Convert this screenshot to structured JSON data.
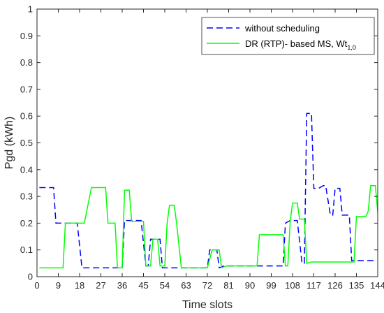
{
  "chart_data": {
    "type": "line",
    "title": "",
    "xlabel": "Time slots",
    "ylabel": "Pgd (kWh)",
    "xlim": [
      0,
      144
    ],
    "ylim": [
      0,
      1
    ],
    "xticks": [
      0,
      9,
      18,
      27,
      36,
      45,
      54,
      63,
      72,
      81,
      90,
      99,
      108,
      117,
      126,
      135,
      144
    ],
    "xtick_labels": [
      "0",
      "9",
      "18",
      "27",
      "36",
      "45",
      "54",
      "63",
      "72",
      "81",
      "90",
      "99",
      "108",
      "117",
      "126",
      "135",
      "144"
    ],
    "yticks": [
      0,
      0.1,
      0.2,
      0.3,
      0.4,
      0.5,
      0.6,
      0.7,
      0.8,
      0.9,
      1
    ],
    "ytick_labels": [
      "0",
      "0.1",
      "0.2",
      "0.3",
      "0.4",
      "0.5",
      "0.6",
      "0.7",
      "0.8",
      "0.9",
      "1"
    ],
    "grid": false,
    "legend_position": "top-right",
    "series": [
      {
        "name": "without scheduling",
        "color": "#0000FF",
        "dash": "dashed",
        "points": [
          [
            1,
            0.333
          ],
          [
            7,
            0.333
          ],
          [
            8,
            0.2
          ],
          [
            14,
            0.2
          ],
          [
            17,
            0.2
          ],
          [
            19,
            0.033
          ],
          [
            36,
            0.033
          ],
          [
            37,
            0.21
          ],
          [
            44,
            0.21
          ],
          [
            46,
            0.04
          ],
          [
            47,
            0.04
          ],
          [
            48,
            0.14
          ],
          [
            52,
            0.14
          ],
          [
            53,
            0.033
          ],
          [
            72,
            0.033
          ],
          [
            73,
            0.1
          ],
          [
            76,
            0.1
          ],
          [
            77,
            0.033
          ],
          [
            79,
            0.04
          ],
          [
            95,
            0.04
          ],
          [
            104,
            0.04
          ],
          [
            105,
            0.2
          ],
          [
            107,
            0.21
          ],
          [
            110,
            0.21
          ],
          [
            112,
            0.05
          ],
          [
            113,
            0.05
          ],
          [
            114,
            0.61
          ],
          [
            116,
            0.61
          ],
          [
            117,
            0.33
          ],
          [
            119,
            0.33
          ],
          [
            121,
            0.34
          ],
          [
            122,
            0.34
          ],
          [
            124,
            0.23
          ],
          [
            125,
            0.23
          ],
          [
            126,
            0.33
          ],
          [
            128,
            0.33
          ],
          [
            129,
            0.23
          ],
          [
            131,
            0.23
          ],
          [
            132,
            0.23
          ],
          [
            133,
            0.06
          ],
          [
            143,
            0.06
          ]
        ]
      },
      {
        "name": "DR (RTP)- based MS, Wt",
        "name_subscript": "1,0",
        "color": "#00FF00",
        "dash": "solid",
        "points": [
          [
            1,
            0.033
          ],
          [
            11,
            0.033
          ],
          [
            12,
            0.2
          ],
          [
            20,
            0.2
          ],
          [
            23,
            0.333
          ],
          [
            29,
            0.333
          ],
          [
            30,
            0.2
          ],
          [
            33,
            0.2
          ],
          [
            34,
            0.033
          ],
          [
            36,
            0.033
          ],
          [
            37,
            0.323
          ],
          [
            39,
            0.323
          ],
          [
            40,
            0.207
          ],
          [
            45,
            0.207
          ],
          [
            46,
            0.04
          ],
          [
            48,
            0.04
          ],
          [
            49,
            0.14
          ],
          [
            51,
            0.14
          ],
          [
            52,
            0.04
          ],
          [
            54,
            0.04
          ],
          [
            55,
            0.2
          ],
          [
            56,
            0.267
          ],
          [
            58,
            0.267
          ],
          [
            59,
            0.2
          ],
          [
            61,
            0.033
          ],
          [
            72,
            0.033
          ],
          [
            74,
            0.1
          ],
          [
            77,
            0.1
          ],
          [
            78,
            0.033
          ],
          [
            80,
            0.04
          ],
          [
            93,
            0.04
          ],
          [
            94,
            0.157
          ],
          [
            103,
            0.157
          ],
          [
            104,
            0.157
          ],
          [
            105,
            0.04
          ],
          [
            106,
            0.04
          ],
          [
            107,
            0.205
          ],
          [
            108,
            0.275
          ],
          [
            110,
            0.275
          ],
          [
            111,
            0.215
          ],
          [
            113,
            0.215
          ],
          [
            114,
            0.05
          ],
          [
            116,
            0.055
          ],
          [
            134,
            0.055
          ],
          [
            135,
            0.225
          ],
          [
            139,
            0.225
          ],
          [
            140,
            0.245
          ],
          [
            141,
            0.34
          ],
          [
            143,
            0.34
          ],
          [
            144,
            0.242
          ]
        ]
      }
    ]
  }
}
